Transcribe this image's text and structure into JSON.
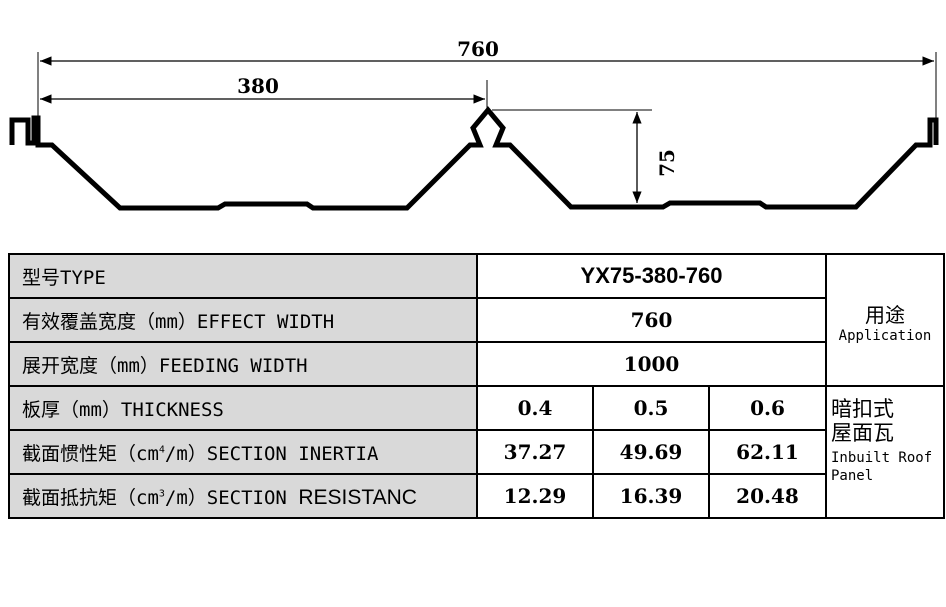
{
  "drawing": {
    "dims": {
      "total_width": "760",
      "half_width": "380",
      "height": "75"
    }
  },
  "table": {
    "type_label": "型号TYPE",
    "type_value": "YX75-380-760",
    "effect_label": "有效覆盖宽度（mm）EFFECT WIDTH",
    "effect_value": "760",
    "feeding_label": "展开宽度（mm）FEEDING WIDTH",
    "feeding_value": "1000",
    "thickness_label": "板厚（mm）THICKNESS",
    "thickness_values": [
      "0.4",
      "0.5",
      "0.6"
    ],
    "inertia_label_pre": "截面惯性矩（cm",
    "inertia_sup": "4",
    "inertia_label_post": "/m）SECTION INERTIA",
    "inertia_values": [
      "37.27",
      "49.69",
      "62.11"
    ],
    "resist_label_pre": "截面抵抗矩（cm",
    "resist_sup": "3",
    "resist_label_mid": "/m）SECTION ",
    "resist_label_end": "RESISTANC",
    "resist_values": [
      "12.29",
      "16.39",
      "20.48"
    ],
    "application_zh": "用途",
    "application_en": "Application",
    "use_zh_line1": "暗扣式",
    "use_zh_line2": "屋面瓦",
    "use_en_line1": "Inbuilt Roof",
    "use_en_line2": "Panel"
  }
}
